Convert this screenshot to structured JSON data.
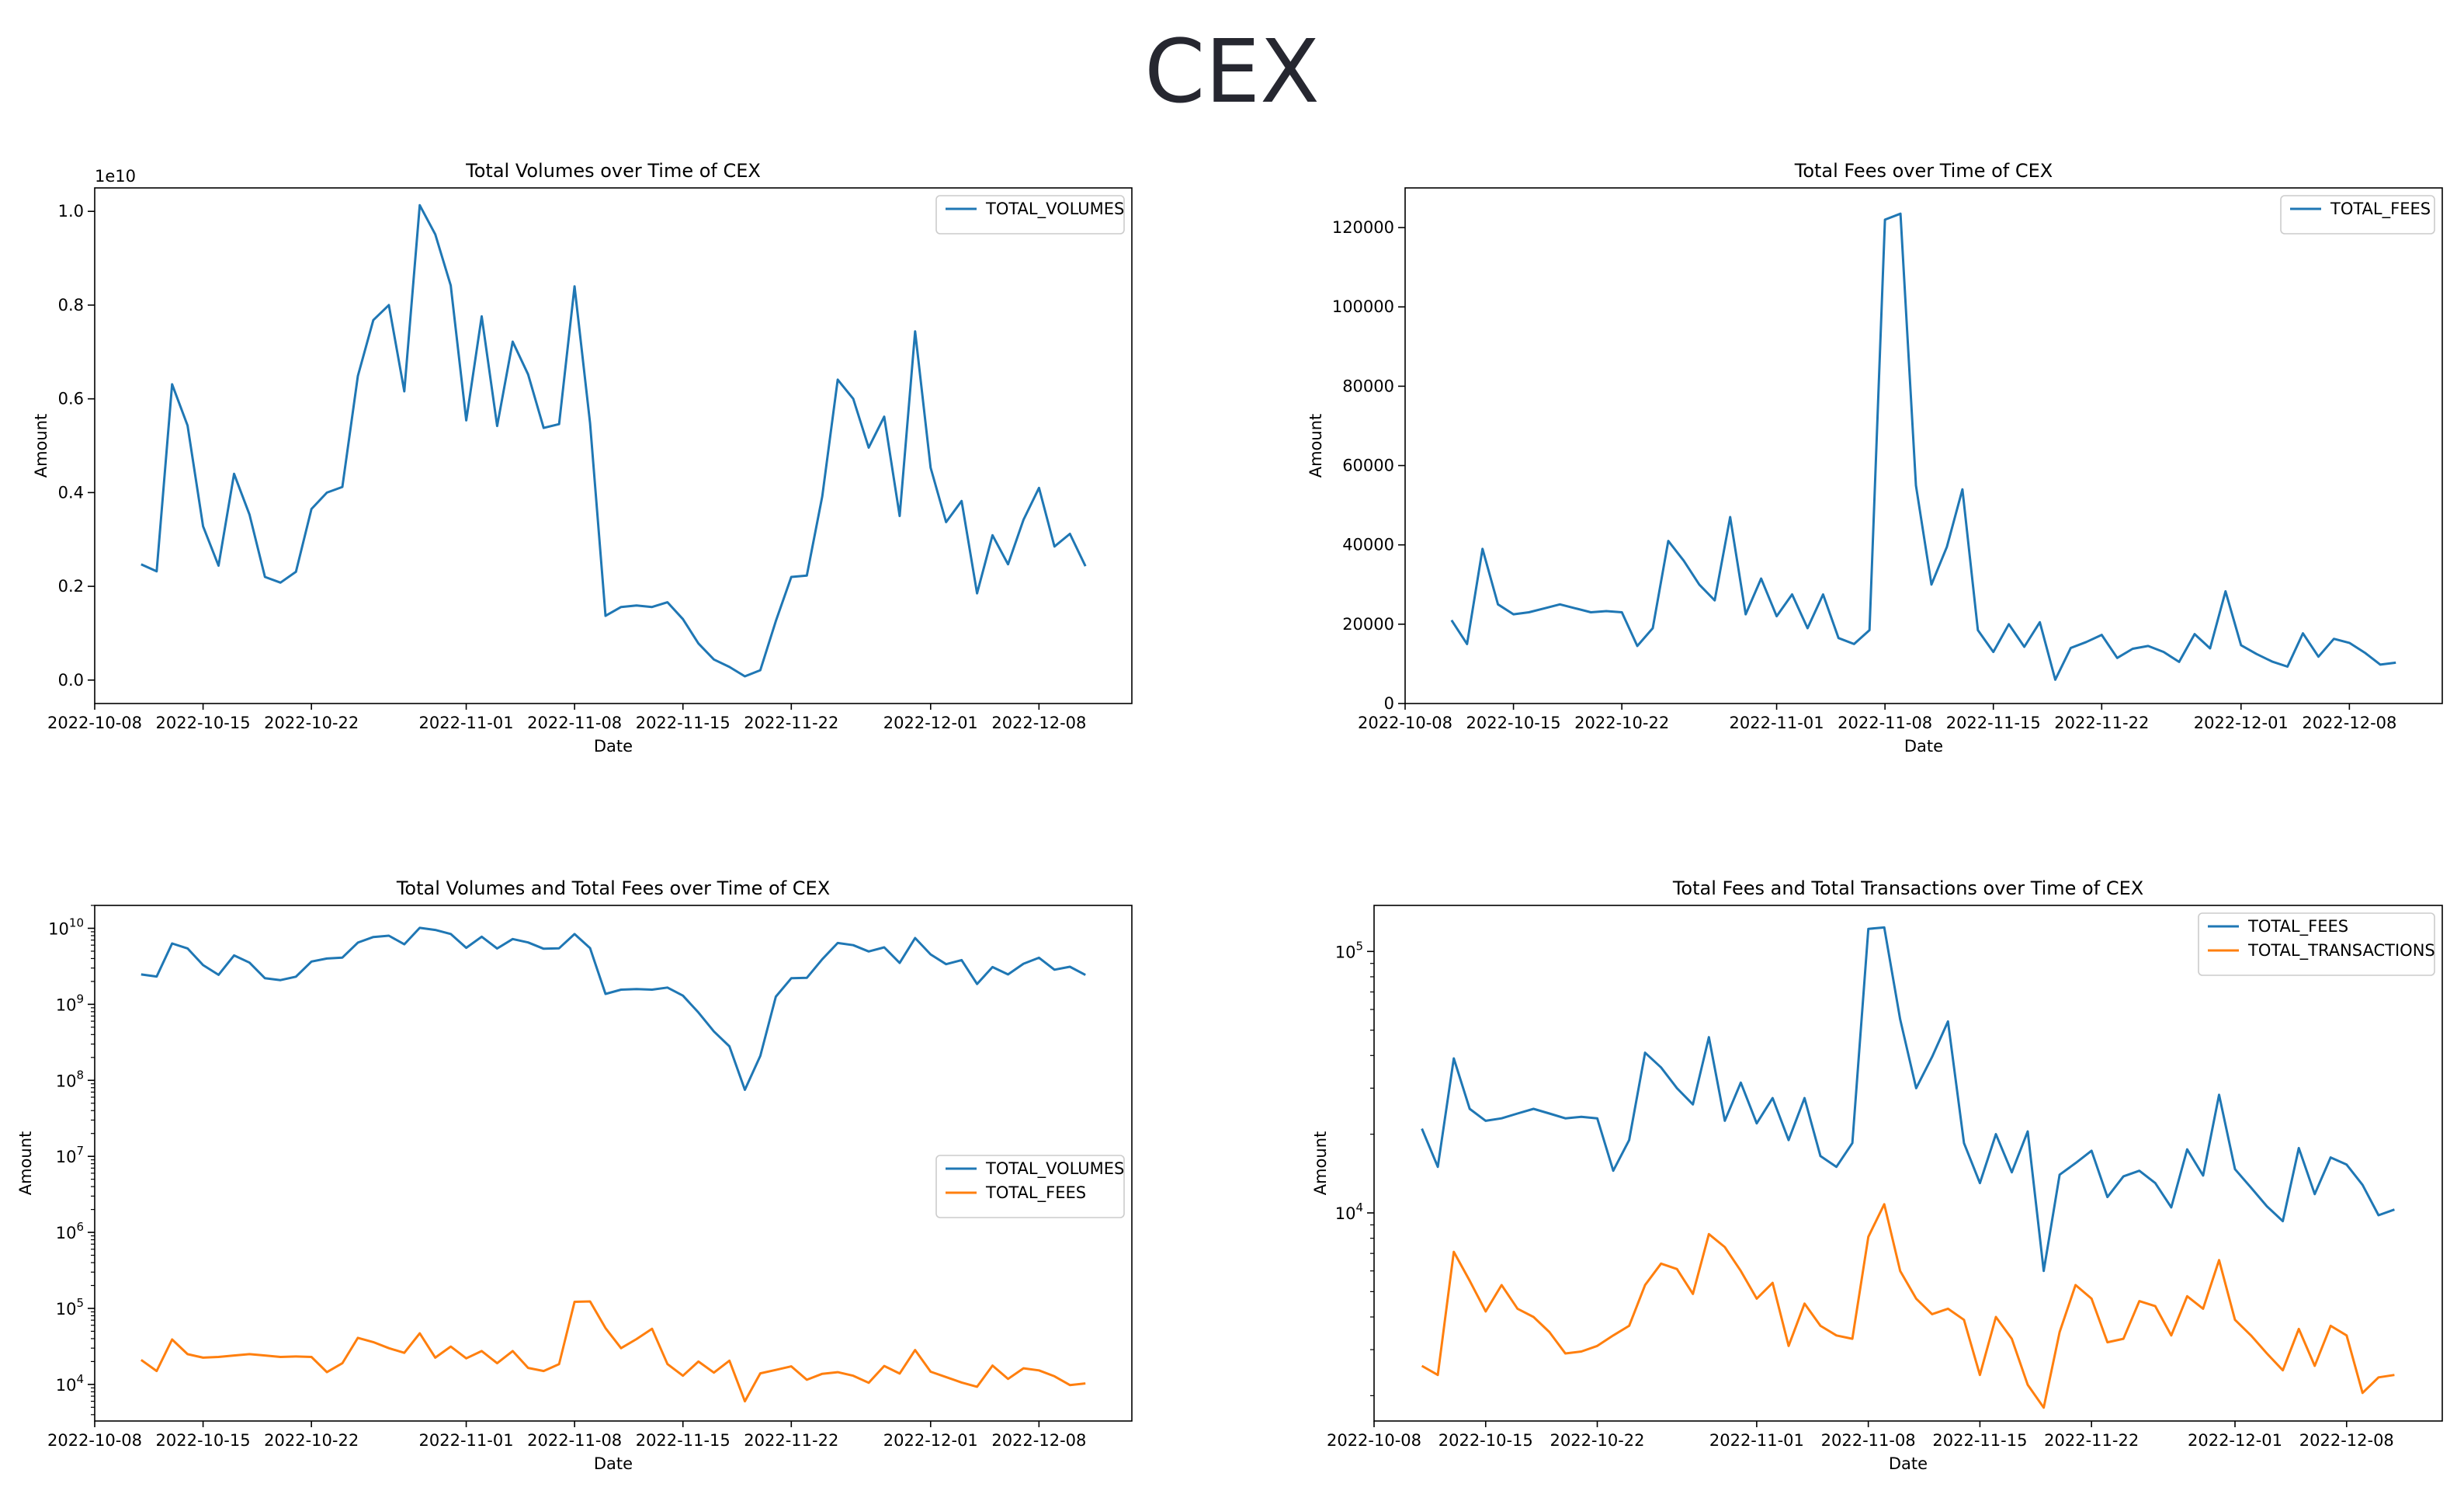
{
  "page": {
    "title": "CEX"
  },
  "dates": [
    "2022-10-11",
    "2022-10-12",
    "2022-10-13",
    "2022-10-14",
    "2022-10-15",
    "2022-10-16",
    "2022-10-17",
    "2022-10-18",
    "2022-10-19",
    "2022-10-20",
    "2022-10-21",
    "2022-10-22",
    "2022-10-23",
    "2022-10-24",
    "2022-10-25",
    "2022-10-26",
    "2022-10-27",
    "2022-10-28",
    "2022-10-29",
    "2022-10-30",
    "2022-10-31",
    "2022-11-01",
    "2022-11-02",
    "2022-11-03",
    "2022-11-04",
    "2022-11-05",
    "2022-11-06",
    "2022-11-07",
    "2022-11-08",
    "2022-11-09",
    "2022-11-10",
    "2022-11-11",
    "2022-11-12",
    "2022-11-13",
    "2022-11-14",
    "2022-11-15",
    "2022-11-16",
    "2022-11-17",
    "2022-11-18",
    "2022-11-19",
    "2022-11-20",
    "2022-11-21",
    "2022-11-22",
    "2022-11-23",
    "2022-11-24",
    "2022-11-25",
    "2022-11-26",
    "2022-11-27",
    "2022-11-28",
    "2022-11-29",
    "2022-11-30",
    "2022-12-01",
    "2022-12-02",
    "2022-12-03",
    "2022-12-04",
    "2022-12-05",
    "2022-12-06",
    "2022-12-07",
    "2022-12-08",
    "2022-12-09",
    "2022-12-10",
    "2022-12-11"
  ],
  "colors": {
    "blue": "#1f77b4",
    "orange": "#ff7f0e"
  },
  "chart_data": [
    {
      "type": "line",
      "title": "Total Volumes over Time of CEX",
      "xlabel": "Date",
      "ylabel": "Amount",
      "yscale": "linear",
      "multiplier_label": "1e10",
      "ylim": [
        -0.05,
        1.05
      ],
      "yticks": [
        0.0,
        0.2,
        0.4,
        0.6,
        0.8,
        1.0
      ],
      "ytick_labels": [
        "0.0",
        "0.2",
        "0.4",
        "0.6",
        "0.8",
        "1.0"
      ],
      "xticks": [
        "2022-10-08",
        "2022-10-15",
        "2022-10-22",
        "2022-11-01",
        "2022-11-08",
        "2022-11-15",
        "2022-11-22",
        "2022-12-01",
        "2022-12-08"
      ],
      "legend": "top-right",
      "series": [
        {
          "name": "TOTAL_VOLUMES",
          "color": "#1f77b4",
          "values": [
            0.247,
            0.232,
            0.631,
            0.543,
            0.328,
            0.244,
            0.44,
            0.353,
            0.22,
            0.208,
            0.231,
            0.365,
            0.4,
            0.412,
            0.649,
            0.768,
            0.8,
            0.616,
            1.013,
            0.951,
            0.842,
            0.554,
            0.776,
            0.542,
            0.722,
            0.652,
            0.538,
            0.546,
            0.84,
            0.548,
            0.137,
            0.156,
            0.159,
            0.156,
            0.166,
            0.13,
            0.078,
            0.044,
            0.028,
            0.008,
            0.021,
            0.126,
            0.22,
            0.223,
            0.392,
            0.641,
            0.6,
            0.496,
            0.562,
            0.35,
            0.744,
            0.453,
            0.337,
            0.382,
            0.185,
            0.309,
            0.247,
            0.342,
            0.41,
            0.285,
            0.312,
            0.243
          ]
        }
      ]
    },
    {
      "type": "line",
      "title": "Total Fees over Time of CEX",
      "xlabel": "Date",
      "ylabel": "Amount",
      "yscale": "linear",
      "ylim": [
        0,
        130000
      ],
      "yticks": [
        0,
        20000,
        40000,
        60000,
        80000,
        100000,
        120000
      ],
      "ytick_labels": [
        "0",
        "20000",
        "40000",
        "60000",
        "80000",
        "100000",
        "120000"
      ],
      "xticks": [
        "2022-10-08",
        "2022-10-15",
        "2022-10-22",
        "2022-11-01",
        "2022-11-08",
        "2022-11-15",
        "2022-11-22",
        "2022-12-01",
        "2022-12-08"
      ],
      "legend": "top-right",
      "series": [
        {
          "name": "TOTAL_FEES",
          "color": "#1f77b4",
          "values": [
            21000,
            15000,
            39000,
            25000,
            22500,
            23000,
            24000,
            25000,
            24000,
            23000,
            23300,
            23000,
            14500,
            19000,
            41000,
            36000,
            30000,
            26000,
            47000,
            22500,
            31500,
            22000,
            27500,
            19000,
            27500,
            16500,
            15000,
            18500,
            122000,
            123500,
            55000,
            30000,
            39500,
            54000,
            18500,
            13000,
            20000,
            14300,
            20500,
            6000,
            14000,
            15500,
            17300,
            11500,
            13800,
            14500,
            13000,
            10500,
            17500,
            13900,
            28300,
            14700,
            12500,
            10600,
            9300,
            17700,
            11800,
            16300,
            15300,
            12800,
            9800,
            10300
          ]
        }
      ]
    },
    {
      "type": "line",
      "title": "Total Volumes and Total Fees over Time of CEX",
      "xlabel": "Date",
      "ylabel": "Amount",
      "yscale": "log",
      "ylim": [
        3300,
        20000000000
      ],
      "yticks": [
        10000,
        100000,
        1000000,
        10000000,
        100000000,
        1000000000,
        10000000000
      ],
      "ytick_exponents": [
        "4",
        "5",
        "6",
        "7",
        "8",
        "9",
        "10"
      ],
      "ytick_base": "10",
      "xticks": [
        "2022-10-08",
        "2022-10-15",
        "2022-10-22",
        "2022-11-01",
        "2022-11-08",
        "2022-11-15",
        "2022-11-22",
        "2022-12-01",
        "2022-12-08"
      ],
      "legend": "center-right",
      "series": [
        {
          "name": "TOTAL_VOLUMES",
          "color": "#1f77b4",
          "values": [
            2470000000,
            2320000000,
            6310000000,
            5430000000,
            3280000000,
            2440000000,
            4400000000,
            3530000000,
            2200000000,
            2080000000,
            2310000000,
            3650000000,
            4000000000,
            4120000000,
            6490000000,
            7680000000,
            8000000000,
            6160000000,
            10130000000,
            9510000000,
            8420000000,
            5540000000,
            7760000000,
            5420000000,
            7220000000,
            6520000000,
            5380000000,
            5460000000,
            8400000000,
            5480000000,
            1370000000,
            1560000000,
            1590000000,
            1560000000,
            1660000000,
            1300000000,
            780000000,
            440000000,
            280000000,
            75000000,
            210000000,
            1260000000,
            2200000000,
            2230000000,
            3920000000,
            6410000000,
            6000000000,
            4960000000,
            5620000000,
            3500000000,
            7440000000,
            4530000000,
            3370000000,
            3820000000,
            1850000000,
            3090000000,
            2470000000,
            3420000000,
            4100000000,
            2850000000,
            3120000000,
            2430000000
          ]
        },
        {
          "name": "TOTAL_FEES",
          "color": "#ff7f0e",
          "values": [
            21000,
            15000,
            39000,
            25000,
            22500,
            23000,
            24000,
            25000,
            24000,
            23000,
            23300,
            23000,
            14500,
            19000,
            41000,
            36000,
            30000,
            26000,
            47000,
            22500,
            31500,
            22000,
            27500,
            19000,
            27500,
            16500,
            15000,
            18500,
            122000,
            123500,
            55000,
            30000,
            39500,
            54000,
            18500,
            13000,
            20000,
            14300,
            20500,
            6000,
            14000,
            15500,
            17300,
            11500,
            13800,
            14500,
            13000,
            10500,
            17500,
            13900,
            28300,
            14700,
            12500,
            10600,
            9300,
            17700,
            11800,
            16300,
            15300,
            12800,
            9800,
            10300
          ]
        }
      ]
    },
    {
      "type": "line",
      "title": "Total Fees and Total Transactions over Time of CEX",
      "xlabel": "Date",
      "ylabel": "Amount",
      "yscale": "log",
      "ylim": [
        1600,
        150000
      ],
      "yticks": [
        10000,
        100000
      ],
      "ytick_exponents": [
        "4",
        "5"
      ],
      "ytick_base": "10",
      "xticks": [
        "2022-10-08",
        "2022-10-15",
        "2022-10-22",
        "2022-11-01",
        "2022-11-08",
        "2022-11-15",
        "2022-11-22",
        "2022-12-01",
        "2022-12-08"
      ],
      "legend": "top-right",
      "series": [
        {
          "name": "TOTAL_FEES",
          "color": "#1f77b4",
          "values": [
            21000,
            15000,
            39000,
            25000,
            22500,
            23000,
            24000,
            25000,
            24000,
            23000,
            23300,
            23000,
            14500,
            19000,
            41000,
            36000,
            30000,
            26000,
            47000,
            22500,
            31500,
            22000,
            27500,
            19000,
            27500,
            16500,
            15000,
            18500,
            122000,
            123500,
            55000,
            30000,
            39500,
            54000,
            18500,
            13000,
            20000,
            14300,
            20500,
            6000,
            14000,
            15500,
            17300,
            11500,
            13800,
            14500,
            13000,
            10500,
            17500,
            13900,
            28300,
            14700,
            12500,
            10600,
            9300,
            17700,
            11800,
            16300,
            15300,
            12800,
            9800,
            10300
          ]
        },
        {
          "name": "TOTAL_TRANSACTIONS",
          "color": "#ff7f0e",
          "values": [
            2600,
            2400,
            7100,
            5500,
            4200,
            5300,
            4300,
            4000,
            3500,
            2900,
            2950,
            3100,
            3400,
            3700,
            5300,
            6400,
            6100,
            4900,
            8300,
            7400,
            6000,
            4700,
            5400,
            3100,
            4500,
            3700,
            3400,
            3300,
            8100,
            10800,
            6000,
            4700,
            4100,
            4300,
            3900,
            2400,
            4000,
            3300,
            2200,
            1800,
            3500,
            5300,
            4700,
            3200,
            3300,
            4600,
            4400,
            3400,
            4800,
            4300,
            6600,
            3900,
            3400,
            2900,
            2500,
            3600,
            2600,
            3700,
            3400,
            2050,
            2350,
            2400
          ]
        }
      ]
    }
  ]
}
